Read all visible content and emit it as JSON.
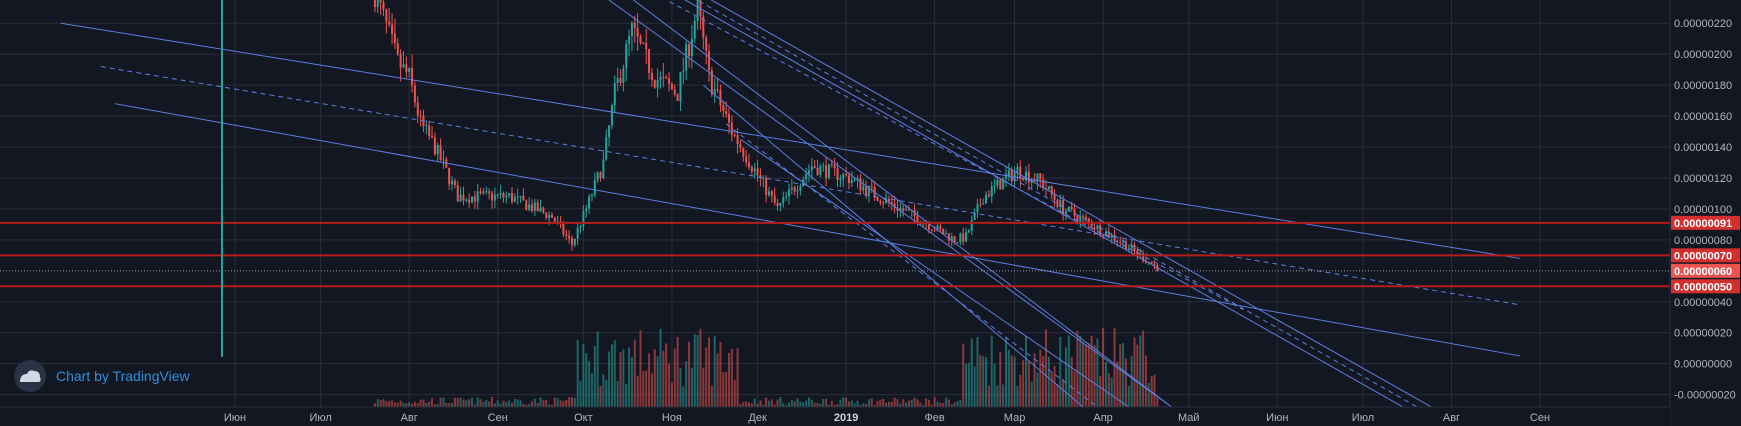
{
  "chart_data": {
    "type": "candlestick",
    "x_ticks": [
      {
        "date": "2018-06-01",
        "label": "Июн"
      },
      {
        "date": "2018-07-01",
        "label": "Июл"
      },
      {
        "date": "2018-08-01",
        "label": "Авг"
      },
      {
        "date": "2018-09-01",
        "label": "Сен"
      },
      {
        "date": "2018-10-01",
        "label": "Окт"
      },
      {
        "date": "2018-11-01",
        "label": "Ноя"
      },
      {
        "date": "2018-12-01",
        "label": "Дек"
      },
      {
        "date": "2019-01-01",
        "label": "2019"
      },
      {
        "date": "2019-02-01",
        "label": "Фев"
      },
      {
        "date": "2019-03-01",
        "label": "Мар"
      },
      {
        "date": "2019-04-01",
        "label": "Апр"
      },
      {
        "date": "2019-05-01",
        "label": "Май"
      },
      {
        "date": "2019-06-01",
        "label": "Июн"
      },
      {
        "date": "2019-07-01",
        "label": "Июл"
      },
      {
        "date": "2019-08-01",
        "label": "Авг"
      },
      {
        "date": "2019-09-01",
        "label": "Сен"
      }
    ],
    "y_ticks": [
      {
        "value": 2.2e-06,
        "label": "0.00000220"
      },
      {
        "value": 2e-06,
        "label": "0.00000200"
      },
      {
        "value": 1.8e-06,
        "label": "0.00000180"
      },
      {
        "value": 1.6e-06,
        "label": "0.00000160"
      },
      {
        "value": 1.4e-06,
        "label": "0.00000140"
      },
      {
        "value": 1.2e-06,
        "label": "0.00000120"
      },
      {
        "value": 1e-06,
        "label": "0.00000100"
      },
      {
        "value": 8e-07,
        "label": "0.00000080"
      },
      {
        "value": 4e-07,
        "label": "0.00000040"
      },
      {
        "value": 2e-07,
        "label": "0.00000020"
      },
      {
        "value": 0.0,
        "label": "0.00000000"
      },
      {
        "value": -2e-07,
        "label": "-0.00000020"
      }
    ],
    "ylim": [
      -2.8e-07,
      2.35e-06
    ],
    "price_levels": [
      {
        "value": 9.1e-07,
        "label": "0.00000091"
      },
      {
        "value": 7e-07,
        "label": "0.00000070"
      },
      {
        "value": 5e-07,
        "label": "0.00000050"
      }
    ],
    "last_price": {
      "value": 6e-07,
      "label": "0.00000060"
    },
    "colors": {
      "background": "#131722",
      "grid": "#2a2e39",
      "up": "#26a69a",
      "down": "#ef5350",
      "trendline": "#5b7fe0",
      "level": "#b71c1c",
      "badge": "#d32f2f",
      "badge_last": "#ef5350"
    },
    "watermark": "Chart by TradingView",
    "watermark_icon": "tradingview-cloud-icon"
  }
}
